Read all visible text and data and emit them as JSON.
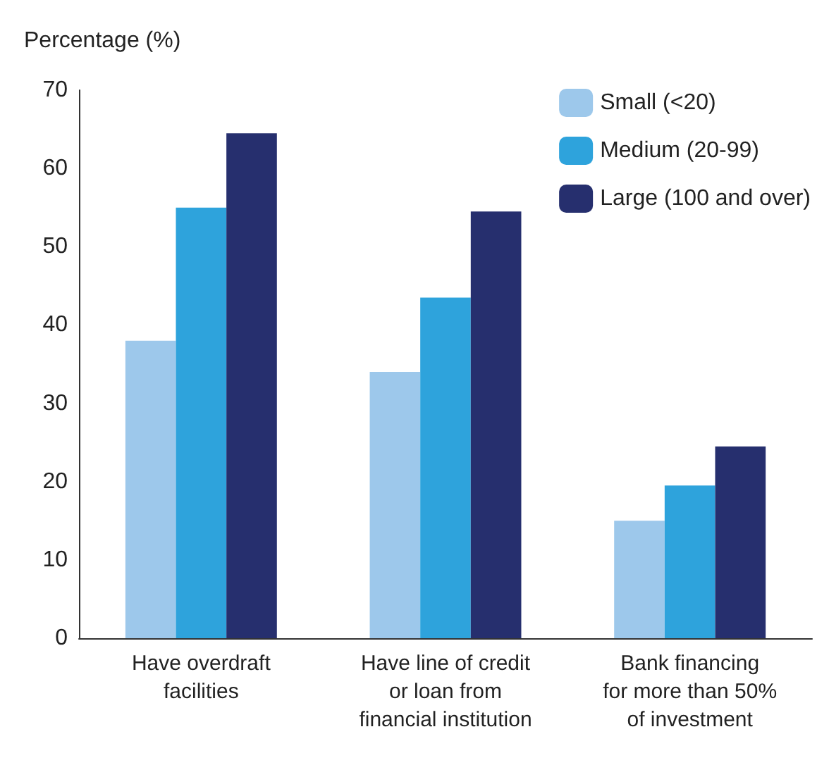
{
  "chart_data": {
    "type": "bar",
    "ylabel": "Percentage (%)",
    "categories": [
      "Have overdraft\nfacilities",
      "Have line of credit\nor loan from\nfinancial institution",
      "Bank financing\nfor more than 50%\nof investment"
    ],
    "series": [
      {
        "name": "Small (<20)",
        "color": "#9dc8eb",
        "values": [
          38,
          34,
          15
        ]
      },
      {
        "name": "Medium (20-99)",
        "color": "#2ea3dc",
        "values": [
          55,
          43.5,
          19.5
        ]
      },
      {
        "name": "Large (100 and over)",
        "color": "#262f6e",
        "values": [
          64.5,
          54.5,
          24.5
        ]
      }
    ],
    "ylim": [
      0,
      70
    ],
    "yticks": [
      0,
      10,
      20,
      30,
      40,
      50,
      60,
      70
    ],
    "grid": false,
    "legend": "top right"
  }
}
